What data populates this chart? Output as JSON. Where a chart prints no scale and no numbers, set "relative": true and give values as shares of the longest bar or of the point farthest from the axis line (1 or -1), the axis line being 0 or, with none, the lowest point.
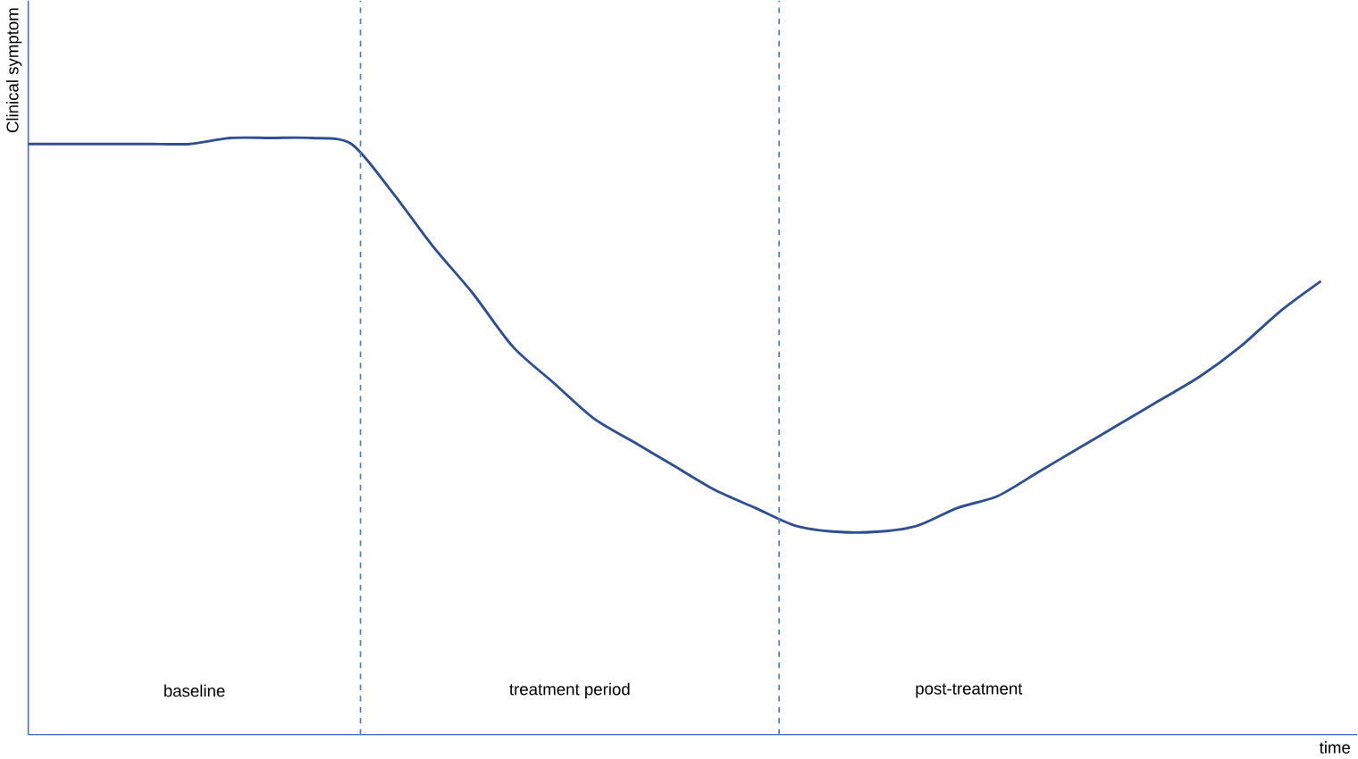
{
  "chart_data": {
    "type": "line",
    "relative": true,
    "ylabel": "Clinical symptom",
    "xlabel": "time",
    "categories": [
      null,
      null,
      null,
      null,
      null,
      null,
      null,
      null,
      null,
      null,
      null,
      null,
      null,
      null,
      null,
      null,
      null,
      null,
      null,
      null,
      null,
      null,
      null,
      null,
      null,
      null,
      null,
      null,
      null,
      null,
      null,
      null,
      null
    ],
    "series": [
      {
        "color": "#2e4f93",
        "values": [
          0.99,
          0.99,
          0.99,
          0.99,
          0.99,
          1.0,
          1.0,
          1.0,
          0.99,
          0.91,
          0.82,
          0.74,
          0.65,
          0.59,
          0.53,
          0.49,
          0.45,
          0.41,
          0.38,
          0.35,
          0.34,
          0.34,
          0.35,
          0.38,
          0.4,
          0.44,
          0.48,
          0.52,
          0.56,
          0.6,
          0.65,
          0.71,
          0.76
        ]
      }
    ],
    "annotations": [
      "baseline",
      "treatment period",
      "post-treatment"
    ],
    "marker": "none",
    "line_style": "solid"
  }
}
